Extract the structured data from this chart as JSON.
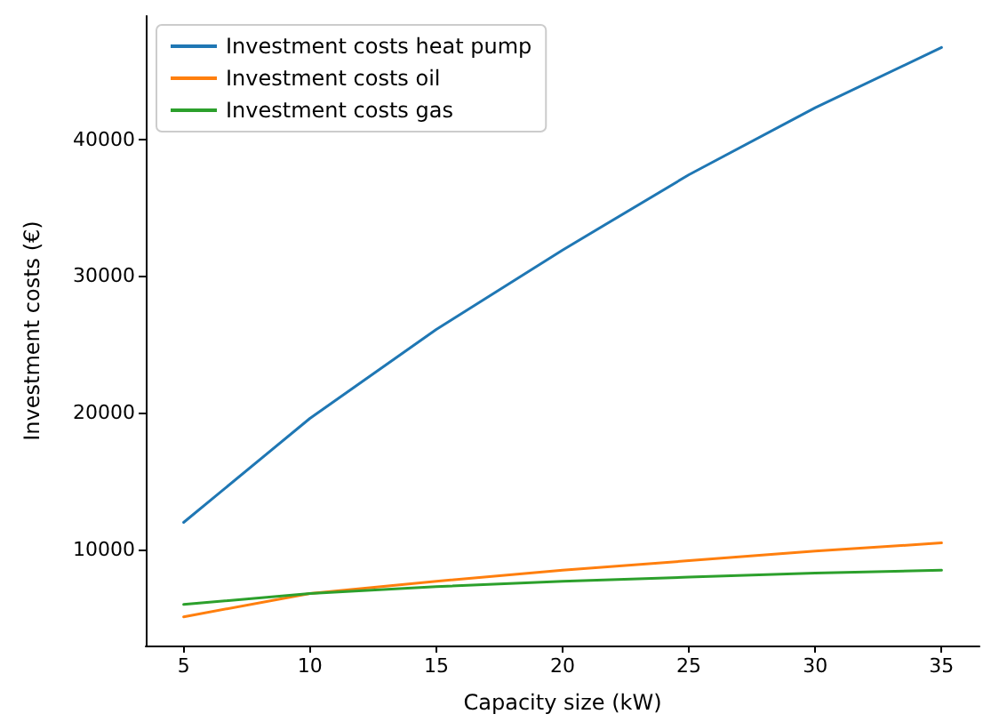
{
  "chart_data": {
    "type": "line",
    "xlabel": "Capacity size (kW)",
    "ylabel": "Investment costs (€)",
    "x": [
      5,
      10,
      15,
      20,
      25,
      30,
      35
    ],
    "series": [
      {
        "name": "Investment costs heat pump",
        "color": "#1f77b4",
        "values": [
          12000,
          19600,
          26100,
          31900,
          37400,
          42300,
          46700
        ]
      },
      {
        "name": "Investment costs oil",
        "color": "#ff7f0e",
        "values": [
          5100,
          6800,
          7700,
          8500,
          9200,
          9900,
          10500
        ]
      },
      {
        "name": "Investment costs gas",
        "color": "#2ca02c",
        "values": [
          6000,
          6800,
          7300,
          7700,
          8000,
          8300,
          8500
        ]
      }
    ],
    "xlim": [
      3.5,
      36.5
    ],
    "ylim": [
      3000,
      49000
    ],
    "xticks": [
      5,
      10,
      15,
      20,
      25,
      30,
      35
    ],
    "yticks": [
      10000,
      20000,
      30000,
      40000
    ],
    "legend": "top left",
    "grid": false,
    "marker": "none",
    "line_style": "solid"
  }
}
